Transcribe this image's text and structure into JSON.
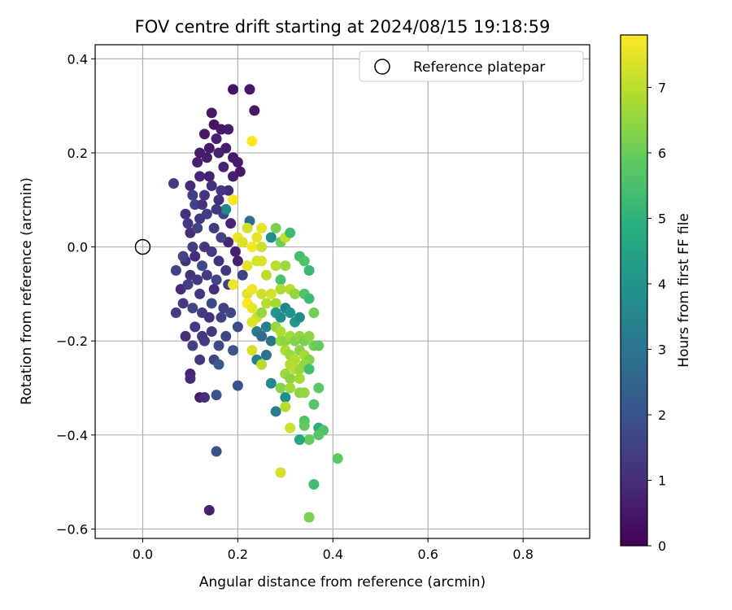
{
  "chart_data": {
    "type": "scatter",
    "title": "FOV centre drift starting at 2024/08/15 19:18:59",
    "xlabel": "Angular distance from reference (arcmin)",
    "ylabel": "Rotation from reference (arcmin)",
    "xlim": [
      -0.1,
      0.94
    ],
    "ylim": [
      -0.62,
      0.43
    ],
    "xticks": [
      0.0,
      0.2,
      0.4,
      0.6,
      0.8
    ],
    "xtick_labels": [
      "0.0",
      "0.2",
      "0.4",
      "0.6",
      "0.8"
    ],
    "yticks": [
      0.4,
      0.2,
      0.0,
      -0.2,
      -0.4,
      -0.6
    ],
    "ytick_labels": [
      "0.4",
      "0.2",
      "0.0",
      "−0.2",
      "−0.4",
      "−0.6"
    ],
    "grid": true,
    "legend": {
      "position": "top-right",
      "entries": [
        "Reference platepar"
      ]
    },
    "reference_point": {
      "x": 0.0,
      "y": 0.0
    },
    "colorbar": {
      "label": "Hours from first FF file",
      "colormap": "viridis",
      "range": [
        0,
        7.8
      ],
      "ticks": [
        0,
        1,
        2,
        3,
        4,
        5,
        6,
        7
      ],
      "tick_labels": [
        "0",
        "1",
        "2",
        "3",
        "4",
        "5",
        "6",
        "7"
      ]
    },
    "series": [
      {
        "values": [
          {
            "x": 0.14,
            "y": -0.56,
            "h": 0.7
          },
          {
            "x": 0.155,
            "y": -0.435,
            "h": 1.9
          },
          {
            "x": 0.12,
            "y": -0.32,
            "h": 0.6
          },
          {
            "x": 0.13,
            "y": -0.32,
            "h": 1.0
          },
          {
            "x": 0.155,
            "y": -0.315,
            "h": 2.0
          },
          {
            "x": 0.2,
            "y": -0.295,
            "h": 2.0
          },
          {
            "x": 0.1,
            "y": -0.27,
            "h": 0.8
          },
          {
            "x": 0.1,
            "y": -0.28,
            "h": 0.9
          },
          {
            "x": 0.12,
            "y": -0.24,
            "h": 1.2
          },
          {
            "x": 0.15,
            "y": -0.24,
            "h": 1.6
          },
          {
            "x": 0.16,
            "y": -0.25,
            "h": 2.1
          },
          {
            "x": 0.09,
            "y": -0.19,
            "h": 1.0
          },
          {
            "x": 0.13,
            "y": -0.2,
            "h": 1.3
          },
          {
            "x": 0.16,
            "y": -0.21,
            "h": 1.7
          },
          {
            "x": 0.19,
            "y": -0.22,
            "h": 2.1
          },
          {
            "x": 0.07,
            "y": -0.14,
            "h": 1.4
          },
          {
            "x": 0.11,
            "y": -0.17,
            "h": 1.3
          },
          {
            "x": 0.14,
            "y": -0.15,
            "h": 1.1
          },
          {
            "x": 0.17,
            "y": -0.13,
            "h": 1.5
          },
          {
            "x": 0.2,
            "y": -0.17,
            "h": 1.8
          },
          {
            "x": 0.08,
            "y": -0.09,
            "h": 0.9
          },
          {
            "x": 0.1,
            "y": -0.06,
            "h": 1.1
          },
          {
            "x": 0.12,
            "y": -0.1,
            "h": 1.2
          },
          {
            "x": 0.15,
            "y": -0.09,
            "h": 1.0
          },
          {
            "x": 0.18,
            "y": -0.08,
            "h": 1.4
          },
          {
            "x": 0.07,
            "y": -0.05,
            "h": 1.5
          },
          {
            "x": 0.09,
            "y": -0.03,
            "h": 1.0
          },
          {
            "x": 0.11,
            "y": -0.02,
            "h": 0.9
          },
          {
            "x": 0.13,
            "y": 0.0,
            "h": 1.2
          },
          {
            "x": 0.16,
            "y": -0.03,
            "h": 1.1
          },
          {
            "x": 0.18,
            "y": 0.01,
            "h": 0.8
          },
          {
            "x": 0.2,
            "y": -0.03,
            "h": 0.7
          },
          {
            "x": 0.21,
            "y": -0.06,
            "h": 1.5
          },
          {
            "x": 0.1,
            "y": 0.03,
            "h": 1.0
          },
          {
            "x": 0.12,
            "y": 0.06,
            "h": 1.3
          },
          {
            "x": 0.15,
            "y": 0.04,
            "h": 1.4
          },
          {
            "x": 0.17,
            "y": 0.07,
            "h": 1.6
          },
          {
            "x": 0.09,
            "y": 0.07,
            "h": 1.1
          },
          {
            "x": 0.11,
            "y": 0.09,
            "h": 1.5
          },
          {
            "x": 0.13,
            "y": 0.11,
            "h": 1.2
          },
          {
            "x": 0.16,
            "y": 0.1,
            "h": 1.0
          },
          {
            "x": 0.18,
            "y": 0.12,
            "h": 0.9
          },
          {
            "x": 0.065,
            "y": 0.135,
            "h": 1.4
          },
          {
            "x": 0.1,
            "y": 0.13,
            "h": 0.9
          },
          {
            "x": 0.12,
            "y": 0.15,
            "h": 0.8
          },
          {
            "x": 0.14,
            "y": 0.15,
            "h": 0.7
          },
          {
            "x": 0.17,
            "y": 0.17,
            "h": 0.8
          },
          {
            "x": 0.19,
            "y": 0.15,
            "h": 0.6
          },
          {
            "x": 0.12,
            "y": 0.2,
            "h": 0.6
          },
          {
            "x": 0.14,
            "y": 0.21,
            "h": 0.5
          },
          {
            "x": 0.16,
            "y": 0.2,
            "h": 0.7
          },
          {
            "x": 0.19,
            "y": 0.19,
            "h": 0.5
          },
          {
            "x": 0.2,
            "y": 0.18,
            "h": 0.6
          },
          {
            "x": 0.13,
            "y": 0.24,
            "h": 0.5
          },
          {
            "x": 0.15,
            "y": 0.26,
            "h": 0.4
          },
          {
            "x": 0.18,
            "y": 0.25,
            "h": 0.6
          },
          {
            "x": 0.145,
            "y": 0.285,
            "h": 0.5
          },
          {
            "x": 0.19,
            "y": 0.335,
            "h": 0.4
          },
          {
            "x": 0.225,
            "y": 0.335,
            "h": 0.5
          },
          {
            "x": 0.235,
            "y": 0.29,
            "h": 0.5
          },
          {
            "x": 0.23,
            "y": 0.225,
            "h": 7.8
          },
          {
            "x": 0.19,
            "y": 0.1,
            "h": 7.7
          },
          {
            "x": 0.175,
            "y": 0.08,
            "h": 3.6
          },
          {
            "x": 0.225,
            "y": 0.055,
            "h": 2.8
          },
          {
            "x": 0.25,
            "y": 0.04,
            "h": 7.5
          },
          {
            "x": 0.27,
            "y": 0.02,
            "h": 3.7
          },
          {
            "x": 0.28,
            "y": 0.04,
            "h": 6.2
          },
          {
            "x": 0.29,
            "y": 0.01,
            "h": 6.0
          },
          {
            "x": 0.3,
            "y": 0.02,
            "h": 7.1
          },
          {
            "x": 0.31,
            "y": 0.03,
            "h": 5.3
          },
          {
            "x": 0.22,
            "y": 0.04,
            "h": 7.3
          },
          {
            "x": 0.2,
            "y": 0.02,
            "h": 7.6
          },
          {
            "x": 0.21,
            "y": 0.01,
            "h": 7.4
          },
          {
            "x": 0.23,
            "y": 0.0,
            "h": 7.7
          },
          {
            "x": 0.24,
            "y": 0.02,
            "h": 7.5
          },
          {
            "x": 0.25,
            "y": 0.0,
            "h": 7.2
          },
          {
            "x": 0.24,
            "y": -0.03,
            "h": 7.3
          },
          {
            "x": 0.25,
            "y": -0.03,
            "h": 7.4
          },
          {
            "x": 0.26,
            "y": -0.06,
            "h": 7.0
          },
          {
            "x": 0.22,
            "y": -0.04,
            "h": 7.5
          },
          {
            "x": 0.19,
            "y": -0.08,
            "h": 7.6
          },
          {
            "x": 0.28,
            "y": -0.04,
            "h": 7.0
          },
          {
            "x": 0.3,
            "y": -0.04,
            "h": 6.6
          },
          {
            "x": 0.33,
            "y": -0.02,
            "h": 5.4
          },
          {
            "x": 0.34,
            "y": -0.03,
            "h": 5.6
          },
          {
            "x": 0.35,
            "y": -0.05,
            "h": 5.2
          },
          {
            "x": 0.29,
            "y": -0.07,
            "h": 5.5
          },
          {
            "x": 0.29,
            "y": -0.09,
            "h": 6.8
          },
          {
            "x": 0.31,
            "y": -0.09,
            "h": 7.0
          },
          {
            "x": 0.32,
            "y": -0.1,
            "h": 6.5
          },
          {
            "x": 0.34,
            "y": -0.1,
            "h": 5.6
          },
          {
            "x": 0.35,
            "y": -0.11,
            "h": 5.3
          },
          {
            "x": 0.36,
            "y": -0.14,
            "h": 6.1
          },
          {
            "x": 0.22,
            "y": -0.1,
            "h": 7.4
          },
          {
            "x": 0.23,
            "y": -0.09,
            "h": 7.6
          },
          {
            "x": 0.25,
            "y": -0.1,
            "h": 7.2
          },
          {
            "x": 0.26,
            "y": -0.12,
            "h": 6.9
          },
          {
            "x": 0.27,
            "y": -0.1,
            "h": 7.3
          },
          {
            "x": 0.28,
            "y": -0.12,
            "h": 6.7
          },
          {
            "x": 0.22,
            "y": -0.12,
            "h": 7.8
          },
          {
            "x": 0.23,
            "y": -0.13,
            "h": 7.5
          },
          {
            "x": 0.24,
            "y": -0.15,
            "h": 7.2
          },
          {
            "x": 0.25,
            "y": -0.14,
            "h": 6.5
          },
          {
            "x": 0.28,
            "y": -0.14,
            "h": 4.0
          },
          {
            "x": 0.29,
            "y": -0.15,
            "h": 3.8
          },
          {
            "x": 0.3,
            "y": -0.13,
            "h": 3.5
          },
          {
            "x": 0.31,
            "y": -0.14,
            "h": 3.9
          },
          {
            "x": 0.32,
            "y": -0.16,
            "h": 4.2
          },
          {
            "x": 0.33,
            "y": -0.15,
            "h": 3.7
          },
          {
            "x": 0.24,
            "y": -0.18,
            "h": 3.1
          },
          {
            "x": 0.25,
            "y": -0.19,
            "h": 2.7
          },
          {
            "x": 0.26,
            "y": -0.17,
            "h": 3.4
          },
          {
            "x": 0.27,
            "y": -0.2,
            "h": 3.0
          },
          {
            "x": 0.23,
            "y": -0.16,
            "h": 7.4
          },
          {
            "x": 0.23,
            "y": -0.22,
            "h": 7.3
          },
          {
            "x": 0.28,
            "y": -0.17,
            "h": 6.5
          },
          {
            "x": 0.29,
            "y": -0.18,
            "h": 6.8
          },
          {
            "x": 0.29,
            "y": -0.2,
            "h": 6.6
          },
          {
            "x": 0.3,
            "y": -0.2,
            "h": 6.4
          },
          {
            "x": 0.31,
            "y": -0.19,
            "h": 6.7
          },
          {
            "x": 0.32,
            "y": -0.2,
            "h": 6.3
          },
          {
            "x": 0.33,
            "y": -0.19,
            "h": 6.5
          },
          {
            "x": 0.34,
            "y": -0.2,
            "h": 6.2
          },
          {
            "x": 0.35,
            "y": -0.19,
            "h": 6.4
          },
          {
            "x": 0.36,
            "y": -0.21,
            "h": 6.1
          },
          {
            "x": 0.37,
            "y": -0.21,
            "h": 5.9
          },
          {
            "x": 0.3,
            "y": -0.22,
            "h": 6.8
          },
          {
            "x": 0.31,
            "y": -0.23,
            "h": 6.6
          },
          {
            "x": 0.32,
            "y": -0.24,
            "h": 6.9
          },
          {
            "x": 0.33,
            "y": -0.22,
            "h": 6.4
          },
          {
            "x": 0.34,
            "y": -0.23,
            "h": 6.7
          },
          {
            "x": 0.35,
            "y": -0.24,
            "h": 6.3
          },
          {
            "x": 0.31,
            "y": -0.25,
            "h": 6.9
          },
          {
            "x": 0.32,
            "y": -0.26,
            "h": 7.0
          },
          {
            "x": 0.33,
            "y": -0.26,
            "h": 6.6
          },
          {
            "x": 0.34,
            "y": -0.25,
            "h": 6.5
          },
          {
            "x": 0.35,
            "y": -0.26,
            "h": 5.4
          },
          {
            "x": 0.24,
            "y": -0.24,
            "h": 3.3
          },
          {
            "x": 0.25,
            "y": -0.25,
            "h": 6.9
          },
          {
            "x": 0.26,
            "y": -0.23,
            "h": 2.9
          },
          {
            "x": 0.3,
            "y": -0.27,
            "h": 6.6
          },
          {
            "x": 0.31,
            "y": -0.28,
            "h": 6.4
          },
          {
            "x": 0.33,
            "y": -0.28,
            "h": 6.7
          },
          {
            "x": 0.27,
            "y": -0.29,
            "h": 3.6
          },
          {
            "x": 0.29,
            "y": -0.3,
            "h": 6.3
          },
          {
            "x": 0.31,
            "y": -0.3,
            "h": 6.7
          },
          {
            "x": 0.33,
            "y": -0.31,
            "h": 6.4
          },
          {
            "x": 0.34,
            "y": -0.31,
            "h": 6.5
          },
          {
            "x": 0.37,
            "y": -0.3,
            "h": 5.8
          },
          {
            "x": 0.3,
            "y": -0.32,
            "h": 3.8
          },
          {
            "x": 0.3,
            "y": -0.34,
            "h": 6.9
          },
          {
            "x": 0.28,
            "y": -0.35,
            "h": 3.4
          },
          {
            "x": 0.36,
            "y": -0.335,
            "h": 5.7
          },
          {
            "x": 0.34,
            "y": -0.37,
            "h": 5.6
          },
          {
            "x": 0.34,
            "y": -0.38,
            "h": 5.9
          },
          {
            "x": 0.31,
            "y": -0.385,
            "h": 7.2
          },
          {
            "x": 0.37,
            "y": -0.385,
            "h": 4.8
          },
          {
            "x": 0.38,
            "y": -0.39,
            "h": 5.6
          },
          {
            "x": 0.37,
            "y": -0.4,
            "h": 5.7
          },
          {
            "x": 0.35,
            "y": -0.41,
            "h": 5.9
          },
          {
            "x": 0.33,
            "y": -0.41,
            "h": 4.6
          },
          {
            "x": 0.41,
            "y": -0.45,
            "h": 5.8
          },
          {
            "x": 0.29,
            "y": -0.48,
            "h": 7.3
          },
          {
            "x": 0.36,
            "y": -0.505,
            "h": 5.4
          },
          {
            "x": 0.35,
            "y": -0.575,
            "h": 6.2
          },
          {
            "x": 0.085,
            "y": -0.12,
            "h": 1.3
          },
          {
            "x": 0.105,
            "y": -0.13,
            "h": 1.6
          },
          {
            "x": 0.125,
            "y": -0.14,
            "h": 1.4
          },
          {
            "x": 0.145,
            "y": -0.12,
            "h": 1.8
          },
          {
            "x": 0.165,
            "y": -0.15,
            "h": 1.5
          },
          {
            "x": 0.185,
            "y": -0.14,
            "h": 1.7
          },
          {
            "x": 0.105,
            "y": -0.21,
            "h": 1.5
          },
          {
            "x": 0.125,
            "y": -0.19,
            "h": 1.2
          },
          {
            "x": 0.145,
            "y": -0.18,
            "h": 1.3
          },
          {
            "x": 0.175,
            "y": -0.19,
            "h": 1.6
          },
          {
            "x": 0.095,
            "y": -0.08,
            "h": 1.5
          },
          {
            "x": 0.115,
            "y": -0.07,
            "h": 1.3
          },
          {
            "x": 0.135,
            "y": -0.06,
            "h": 1.4
          },
          {
            "x": 0.155,
            "y": -0.07,
            "h": 1.6
          },
          {
            "x": 0.175,
            "y": -0.05,
            "h": 1.2
          },
          {
            "x": 0.085,
            "y": -0.02,
            "h": 1.6
          },
          {
            "x": 0.105,
            "y": 0.0,
            "h": 1.4
          },
          {
            "x": 0.125,
            "y": -0.04,
            "h": 1.7
          },
          {
            "x": 0.145,
            "y": -0.01,
            "h": 1.3
          },
          {
            "x": 0.165,
            "y": 0.02,
            "h": 1.5
          },
          {
            "x": 0.095,
            "y": 0.05,
            "h": 1.2
          },
          {
            "x": 0.115,
            "y": 0.04,
            "h": 1.6
          },
          {
            "x": 0.135,
            "y": 0.07,
            "h": 1.4
          },
          {
            "x": 0.155,
            "y": 0.08,
            "h": 1.3
          },
          {
            "x": 0.105,
            "y": 0.11,
            "h": 1.5
          },
          {
            "x": 0.125,
            "y": 0.09,
            "h": 1.1
          },
          {
            "x": 0.145,
            "y": 0.13,
            "h": 1.0
          },
          {
            "x": 0.165,
            "y": 0.12,
            "h": 1.2
          },
          {
            "x": 0.115,
            "y": 0.18,
            "h": 0.7
          },
          {
            "x": 0.135,
            "y": 0.19,
            "h": 0.6
          },
          {
            "x": 0.155,
            "y": 0.23,
            "h": 0.7
          },
          {
            "x": 0.175,
            "y": 0.21,
            "h": 0.6
          },
          {
            "x": 0.165,
            "y": 0.25,
            "h": 0.5
          },
          {
            "x": 0.205,
            "y": 0.16,
            "h": 0.5
          },
          {
            "x": 0.185,
            "y": 0.05,
            "h": 0.8
          },
          {
            "x": 0.195,
            "y": -0.01,
            "h": 0.7
          }
        ]
      }
    ]
  }
}
